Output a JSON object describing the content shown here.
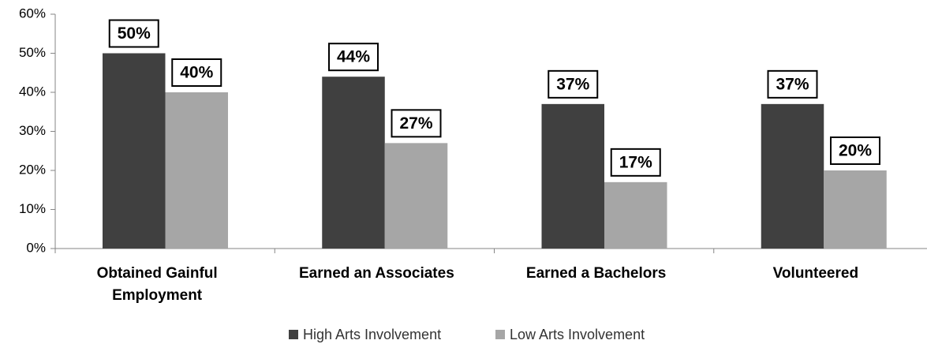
{
  "chart_data": {
    "type": "bar",
    "categories": [
      "Obtained Gainful Employment",
      "Earned an Associates",
      "Earned a Bachelors",
      "Volunteered"
    ],
    "series": [
      {
        "name": "High Arts Involvement",
        "color": "#404040",
        "values": [
          50,
          44,
          37,
          37
        ],
        "value_labels": [
          "50%",
          "44%",
          "37%",
          "37%"
        ]
      },
      {
        "name": "Low Arts Involvement",
        "color": "#a6a6a6",
        "values": [
          40,
          27,
          17,
          20
        ],
        "value_labels": [
          "40%",
          "27%",
          "17%",
          "20%"
        ]
      }
    ],
    "ylim": [
      0,
      60
    ],
    "yticks": [
      {
        "value": 0,
        "label": "0%"
      },
      {
        "value": 10,
        "label": "10%"
      },
      {
        "value": 20,
        "label": "20%"
      },
      {
        "value": 30,
        "label": "30%"
      },
      {
        "value": 40,
        "label": "40%"
      },
      {
        "value": 50,
        "label": "50%"
      },
      {
        "value": 60,
        "label": "60%"
      }
    ],
    "grid": false,
    "legend": "bottom"
  }
}
